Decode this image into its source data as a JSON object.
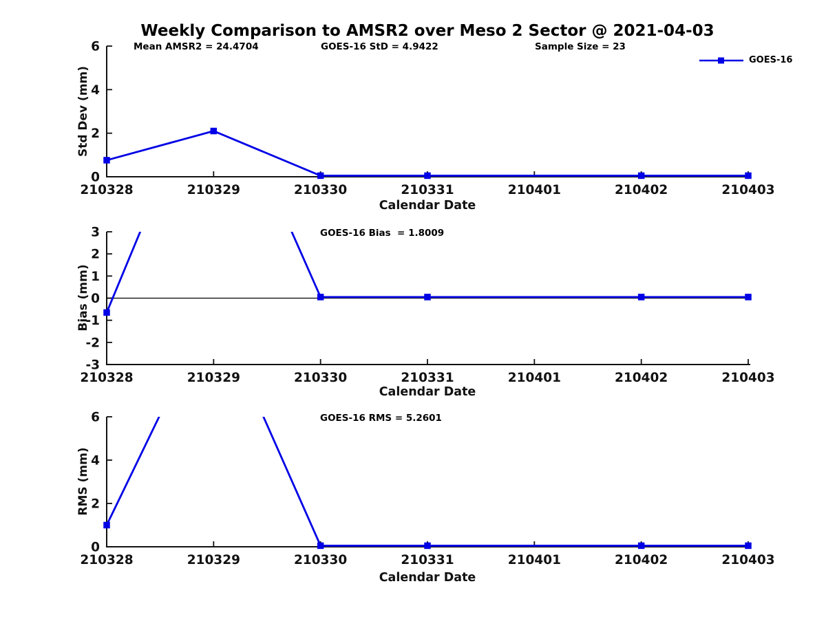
{
  "title": "Weekly Comparison to AMSR2 over Meso 2 Sector @ 2021-04-03",
  "legend": {
    "label": "GOES-16"
  },
  "colors": {
    "series": "#0000e6",
    "axis": "#111111"
  },
  "x_axis": {
    "label": "Calendar Date",
    "ticks": [
      "210328",
      "210329",
      "210330",
      "210331",
      "210401",
      "210402",
      "210403"
    ]
  },
  "annotations": {
    "mean_amsr2": "Mean AMSR2 = 24.4704",
    "goes16_std": "GOES-16 StD = 4.9422",
    "sample_size": "Sample Size = 23",
    "goes16_bias": "GOES-16 Bias  = 1.8009",
    "goes16_rms": "GOES-16 RMS = 5.2601"
  },
  "chart_data": [
    {
      "type": "line",
      "series": "GOES-16",
      "ylabel": "Std Dev (mm)",
      "xlabel": "Calendar Date",
      "x": [
        "210328",
        "210329",
        "210330",
        "210331",
        "210402",
        "210403"
      ],
      "y": [
        0.76,
        2.1,
        0.05,
        0.05,
        0.05,
        0.05
      ],
      "ylim": [
        0,
        6
      ],
      "yticks": [
        0,
        2,
        4,
        6
      ],
      "marker": "square",
      "legend_position": "top-right"
    },
    {
      "type": "line",
      "series": "GOES-16",
      "ylabel": "Bias (mm)",
      "xlabel": "Calendar Date",
      "x": [
        "210328",
        "210329",
        "210330",
        "210331",
        "210402",
        "210403"
      ],
      "y": [
        -0.65,
        11.0,
        0.05,
        0.05,
        0.05,
        0.05
      ],
      "ylim": [
        -3,
        3
      ],
      "yticks": [
        -3,
        -2,
        -1,
        0,
        1,
        2,
        3
      ],
      "zero_line": true,
      "marker": "square",
      "clipped_points": [
        "210329"
      ]
    },
    {
      "type": "line",
      "series": "GOES-16",
      "ylabel": "RMS (mm)",
      "xlabel": "Calendar Date",
      "x": [
        "210328",
        "210329",
        "210330",
        "210331",
        "210402",
        "210403"
      ],
      "y": [
        1.0,
        11.2,
        0.05,
        0.05,
        0.05,
        0.05
      ],
      "ylim": [
        0,
        6
      ],
      "yticks": [
        0,
        2,
        4,
        6
      ],
      "marker": "square",
      "clipped_points": [
        "210329"
      ]
    }
  ]
}
